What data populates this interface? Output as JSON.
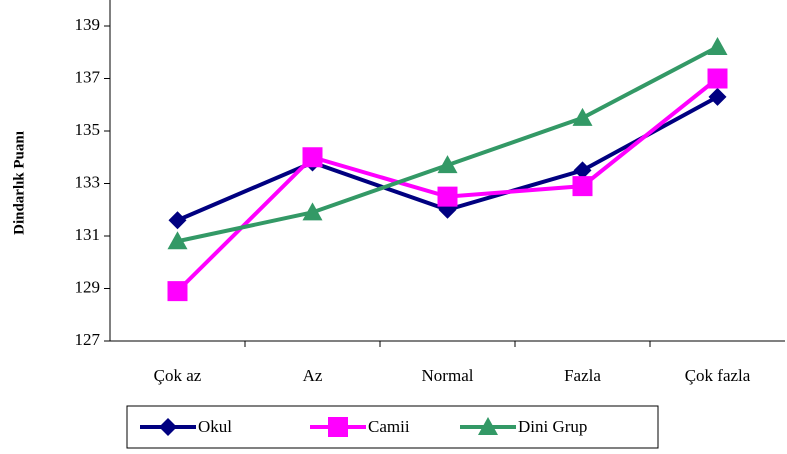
{
  "chart_data": {
    "type": "line",
    "y_label": "Dindarlık Puanı",
    "categories": [
      "Çok az",
      "Az",
      "Normal",
      "Fazla",
      "Çok fazla"
    ],
    "series": [
      {
        "name": "Okul",
        "color": "#000080",
        "marker": "diamond",
        "values": [
          131.6,
          133.8,
          132.0,
          133.5,
          136.3
        ]
      },
      {
        "name": "Camii",
        "color": "#ff00ff",
        "marker": "square",
        "values": [
          128.9,
          134.0,
          132.5,
          132.9,
          137.0
        ]
      },
      {
        "name": "Dini Grup",
        "color": "#339966",
        "marker": "triangle",
        "values": [
          130.8,
          131.9,
          133.7,
          135.5,
          138.2
        ]
      }
    ],
    "ylim": [
      127,
      140
    ],
    "yticks": [
      127,
      129,
      131,
      133,
      135,
      137,
      139
    ],
    "grid": false,
    "legend": "bottom"
  }
}
